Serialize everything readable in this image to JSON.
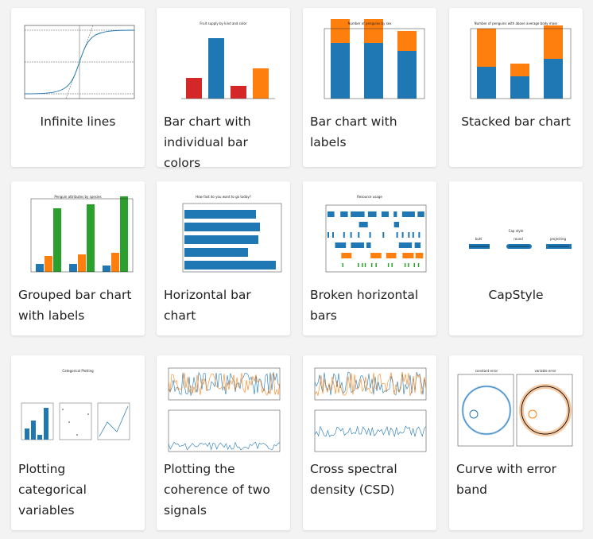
{
  "cards": [
    {
      "caption": "Infinite lines"
    },
    {
      "caption": "Bar chart with individual bar colors",
      "thumb_title": "Fruit supply by kind and color"
    },
    {
      "caption": "Bar chart with labels",
      "thumb_title": "Number of penguins by sex"
    },
    {
      "caption": "Stacked bar chart",
      "thumb_title": "Number of penguins with above average body mass"
    },
    {
      "caption": "Grouped bar chart with labels",
      "thumb_title": "Penguin attributes by species"
    },
    {
      "caption": "Horizontal bar chart",
      "thumb_title": "How fast do you want to go today?"
    },
    {
      "caption": "Broken horizontal bars",
      "thumb_title": "Resource usage"
    },
    {
      "caption": "CapStyle",
      "thumb_title": "Cap style",
      "thumb_labels": [
        "butt",
        "round",
        "projecting"
      ]
    },
    {
      "caption": "Plotting categorical variables",
      "thumb_title": "Categorical Plotting"
    },
    {
      "caption": "Plotting the coherence of two signals"
    },
    {
      "caption": "Cross spectral density (CSD)"
    },
    {
      "caption": "Curve with error band",
      "thumb_labels": [
        "constant error",
        "variable error"
      ]
    }
  ]
}
